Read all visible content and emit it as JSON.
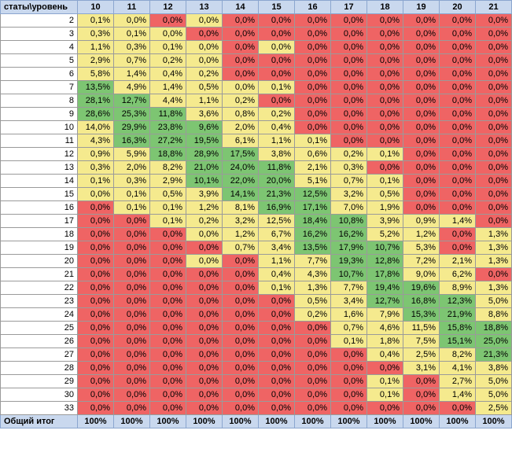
{
  "colors": {
    "red": "#ef6464",
    "yellow": "#f5ea8e",
    "green": "#7dc572",
    "header": "#c9d8ee"
  },
  "corner_label": "статы\\уровень",
  "columns": [
    "10",
    "11",
    "12",
    "13",
    "14",
    "15",
    "16",
    "17",
    "18",
    "19",
    "20",
    "21"
  ],
  "total_label": "Общий итог",
  "totals": [
    "100%",
    "100%",
    "100%",
    "100%",
    "100%",
    "100%",
    "100%",
    "100%",
    "100%",
    "100%",
    "100%",
    "100%"
  ],
  "rows": [
    {
      "label": "2",
      "values": [
        "0,1%",
        "0,0%",
        "0,0%",
        "0,0%",
        "0,0%",
        "0,0%",
        "0,0%",
        "0,0%",
        "0,0%",
        "0,0%",
        "0,0%",
        "0,0%"
      ],
      "colors": [
        "y",
        "y",
        "r",
        "y",
        "r",
        "r",
        "r",
        "r",
        "r",
        "r",
        "r",
        "r"
      ]
    },
    {
      "label": "3",
      "values": [
        "0,3%",
        "0,1%",
        "0,0%",
        "0,0%",
        "0,0%",
        "0,0%",
        "0,0%",
        "0,0%",
        "0,0%",
        "0,0%",
        "0,0%",
        "0,0%"
      ],
      "colors": [
        "y",
        "y",
        "y",
        "r",
        "r",
        "r",
        "r",
        "r",
        "r",
        "r",
        "r",
        "r"
      ]
    },
    {
      "label": "4",
      "values": [
        "1,1%",
        "0,3%",
        "0,1%",
        "0,0%",
        "0,0%",
        "0,0%",
        "0,0%",
        "0,0%",
        "0,0%",
        "0,0%",
        "0,0%",
        "0,0%"
      ],
      "colors": [
        "y",
        "y",
        "y",
        "y",
        "r",
        "y",
        "r",
        "r",
        "r",
        "r",
        "r",
        "r"
      ]
    },
    {
      "label": "5",
      "values": [
        "2,9%",
        "0,7%",
        "0,2%",
        "0,0%",
        "0,0%",
        "0,0%",
        "0,0%",
        "0,0%",
        "0,0%",
        "0,0%",
        "0,0%",
        "0,0%"
      ],
      "colors": [
        "y",
        "y",
        "y",
        "y",
        "r",
        "r",
        "r",
        "r",
        "r",
        "r",
        "r",
        "r"
      ]
    },
    {
      "label": "6",
      "values": [
        "5,8%",
        "1,4%",
        "0,4%",
        "0,2%",
        "0,0%",
        "0,0%",
        "0,0%",
        "0,0%",
        "0,0%",
        "0,0%",
        "0,0%",
        "0,0%"
      ],
      "colors": [
        "y",
        "y",
        "y",
        "y",
        "r",
        "r",
        "r",
        "r",
        "r",
        "r",
        "r",
        "r"
      ]
    },
    {
      "label": "7",
      "values": [
        "13,5%",
        "4,9%",
        "1,4%",
        "0,5%",
        "0,0%",
        "0,1%",
        "0,0%",
        "0,0%",
        "0,0%",
        "0,0%",
        "0,0%",
        "0,0%"
      ],
      "colors": [
        "g",
        "y",
        "y",
        "y",
        "y",
        "y",
        "r",
        "r",
        "r",
        "r",
        "r",
        "r"
      ]
    },
    {
      "label": "8",
      "values": [
        "28,1%",
        "12,7%",
        "4,4%",
        "1,1%",
        "0,2%",
        "0,0%",
        "0,0%",
        "0,0%",
        "0,0%",
        "0,0%",
        "0,0%",
        "0,0%"
      ],
      "colors": [
        "g",
        "g",
        "y",
        "y",
        "y",
        "r",
        "r",
        "r",
        "r",
        "r",
        "r",
        "r"
      ]
    },
    {
      "label": "9",
      "values": [
        "28,6%",
        "25,3%",
        "11,8%",
        "3,6%",
        "0,8%",
        "0,2%",
        "0,0%",
        "0,0%",
        "0,0%",
        "0,0%",
        "0,0%",
        "0,0%"
      ],
      "colors": [
        "g",
        "g",
        "g",
        "y",
        "y",
        "y",
        "r",
        "r",
        "r",
        "r",
        "r",
        "r"
      ]
    },
    {
      "label": "10",
      "values": [
        "14,0%",
        "29,9%",
        "23,8%",
        "9,6%",
        "2,0%",
        "0,4%",
        "0,0%",
        "0,0%",
        "0,0%",
        "0,0%",
        "0,0%",
        "0,0%"
      ],
      "colors": [
        "y",
        "g",
        "g",
        "g",
        "y",
        "y",
        "r",
        "r",
        "r",
        "r",
        "r",
        "r"
      ]
    },
    {
      "label": "11",
      "values": [
        "4,3%",
        "16,3%",
        "27,2%",
        "19,5%",
        "6,1%",
        "1,1%",
        "0,1%",
        "0,0%",
        "0,0%",
        "0,0%",
        "0,0%",
        "0,0%"
      ],
      "colors": [
        "y",
        "g",
        "g",
        "g",
        "y",
        "y",
        "y",
        "r",
        "r",
        "r",
        "r",
        "r"
      ]
    },
    {
      "label": "12",
      "values": [
        "0,9%",
        "5,9%",
        "18,8%",
        "28,9%",
        "17,5%",
        "3,8%",
        "0,6%",
        "0,2%",
        "0,1%",
        "0,0%",
        "0,0%",
        "0,0%"
      ],
      "colors": [
        "y",
        "y",
        "g",
        "g",
        "g",
        "y",
        "y",
        "y",
        "y",
        "r",
        "r",
        "r"
      ]
    },
    {
      "label": "13",
      "values": [
        "0,3%",
        "2,0%",
        "8,2%",
        "21,0%",
        "24,0%",
        "11,8%",
        "2,1%",
        "0,3%",
        "0,0%",
        "0,0%",
        "0,0%",
        "0,0%"
      ],
      "colors": [
        "y",
        "y",
        "y",
        "g",
        "g",
        "g",
        "y",
        "y",
        "r",
        "r",
        "r",
        "r"
      ]
    },
    {
      "label": "14",
      "values": [
        "0,1%",
        "0,3%",
        "2,9%",
        "10,1%",
        "22,0%",
        "20,0%",
        "5,1%",
        "0,7%",
        "0,1%",
        "0,0%",
        "0,0%",
        "0,0%"
      ],
      "colors": [
        "y",
        "y",
        "y",
        "g",
        "g",
        "g",
        "y",
        "y",
        "y",
        "r",
        "r",
        "r"
      ]
    },
    {
      "label": "15",
      "values": [
        "0,0%",
        "0,1%",
        "0,5%",
        "3,9%",
        "14,1%",
        "21,3%",
        "12,5%",
        "3,2%",
        "0,5%",
        "0,0%",
        "0,0%",
        "0,0%"
      ],
      "colors": [
        "y",
        "y",
        "y",
        "y",
        "g",
        "g",
        "g",
        "y",
        "y",
        "r",
        "r",
        "r"
      ]
    },
    {
      "label": "16",
      "values": [
        "0,0%",
        "0,1%",
        "0,1%",
        "1,2%",
        "8,1%",
        "16,9%",
        "17,1%",
        "7,0%",
        "1,9%",
        "0,0%",
        "0,0%",
        "0,0%"
      ],
      "colors": [
        "r",
        "y",
        "y",
        "y",
        "y",
        "g",
        "g",
        "y",
        "y",
        "r",
        "r",
        "r"
      ]
    },
    {
      "label": "17",
      "values": [
        "0,0%",
        "0,0%",
        "0,1%",
        "0,2%",
        "3,2%",
        "12,5%",
        "18,4%",
        "10,8%",
        "3,9%",
        "0,9%",
        "1,4%",
        "0,0%"
      ],
      "colors": [
        "r",
        "r",
        "y",
        "y",
        "y",
        "y",
        "g",
        "g",
        "y",
        "y",
        "y",
        "r"
      ]
    },
    {
      "label": "18",
      "values": [
        "0,0%",
        "0,0%",
        "0,0%",
        "0,0%",
        "1,2%",
        "6,7%",
        "16,2%",
        "16,2%",
        "5,2%",
        "1,2%",
        "0,0%",
        "1,3%"
      ],
      "colors": [
        "r",
        "r",
        "r",
        "y",
        "y",
        "y",
        "g",
        "g",
        "y",
        "y",
        "r",
        "y"
      ]
    },
    {
      "label": "19",
      "values": [
        "0,0%",
        "0,0%",
        "0,0%",
        "0,0%",
        "0,7%",
        "3,4%",
        "13,5%",
        "17,9%",
        "10,7%",
        "5,3%",
        "0,0%",
        "1,3%"
      ],
      "colors": [
        "r",
        "r",
        "r",
        "r",
        "y",
        "y",
        "g",
        "g",
        "g",
        "y",
        "r",
        "y"
      ]
    },
    {
      "label": "20",
      "values": [
        "0,0%",
        "0,0%",
        "0,0%",
        "0,0%",
        "0,0%",
        "1,1%",
        "7,7%",
        "19,3%",
        "12,8%",
        "7,2%",
        "2,1%",
        "1,3%"
      ],
      "colors": [
        "r",
        "r",
        "r",
        "y",
        "r",
        "y",
        "y",
        "g",
        "g",
        "y",
        "y",
        "y"
      ]
    },
    {
      "label": "21",
      "values": [
        "0,0%",
        "0,0%",
        "0,0%",
        "0,0%",
        "0,0%",
        "0,4%",
        "4,3%",
        "10,7%",
        "17,8%",
        "9,0%",
        "6,2%",
        "0,0%"
      ],
      "colors": [
        "r",
        "r",
        "r",
        "r",
        "r",
        "y",
        "y",
        "g",
        "g",
        "y",
        "y",
        "r"
      ]
    },
    {
      "label": "22",
      "values": [
        "0,0%",
        "0,0%",
        "0,0%",
        "0,0%",
        "0,0%",
        "0,1%",
        "1,3%",
        "7,7%",
        "19,4%",
        "19,6%",
        "8,9%",
        "1,3%"
      ],
      "colors": [
        "r",
        "r",
        "r",
        "r",
        "r",
        "y",
        "y",
        "y",
        "g",
        "g",
        "y",
        "y"
      ]
    },
    {
      "label": "23",
      "values": [
        "0,0%",
        "0,0%",
        "0,0%",
        "0,0%",
        "0,0%",
        "0,0%",
        "0,5%",
        "3,4%",
        "12,7%",
        "16,8%",
        "12,3%",
        "5,0%"
      ],
      "colors": [
        "r",
        "r",
        "r",
        "r",
        "r",
        "r",
        "y",
        "y",
        "g",
        "g",
        "g",
        "y"
      ]
    },
    {
      "label": "24",
      "values": [
        "0,0%",
        "0,0%",
        "0,0%",
        "0,0%",
        "0,0%",
        "0,0%",
        "0,2%",
        "1,6%",
        "7,9%",
        "15,3%",
        "21,9%",
        "8,8%"
      ],
      "colors": [
        "r",
        "r",
        "r",
        "r",
        "r",
        "r",
        "y",
        "y",
        "y",
        "g",
        "g",
        "y"
      ]
    },
    {
      "label": "25",
      "values": [
        "0,0%",
        "0,0%",
        "0,0%",
        "0,0%",
        "0,0%",
        "0,0%",
        "0,0%",
        "0,7%",
        "4,6%",
        "11,5%",
        "15,8%",
        "18,8%"
      ],
      "colors": [
        "r",
        "r",
        "r",
        "r",
        "r",
        "r",
        "r",
        "y",
        "y",
        "y",
        "g",
        "g"
      ]
    },
    {
      "label": "26",
      "values": [
        "0,0%",
        "0,0%",
        "0,0%",
        "0,0%",
        "0,0%",
        "0,0%",
        "0,0%",
        "0,1%",
        "1,8%",
        "7,5%",
        "15,1%",
        "25,0%"
      ],
      "colors": [
        "r",
        "r",
        "r",
        "r",
        "r",
        "r",
        "r",
        "y",
        "y",
        "y",
        "g",
        "g"
      ]
    },
    {
      "label": "27",
      "values": [
        "0,0%",
        "0,0%",
        "0,0%",
        "0,0%",
        "0,0%",
        "0,0%",
        "0,0%",
        "0,0%",
        "0,4%",
        "2,5%",
        "8,2%",
        "21,3%"
      ],
      "colors": [
        "r",
        "r",
        "r",
        "r",
        "r",
        "r",
        "r",
        "r",
        "y",
        "y",
        "y",
        "g"
      ]
    },
    {
      "label": "28",
      "values": [
        "0,0%",
        "0,0%",
        "0,0%",
        "0,0%",
        "0,0%",
        "0,0%",
        "0,0%",
        "0,0%",
        "0,0%",
        "3,1%",
        "4,1%",
        "3,8%"
      ],
      "colors": [
        "r",
        "r",
        "r",
        "r",
        "r",
        "r",
        "r",
        "r",
        "r",
        "y",
        "y",
        "y"
      ]
    },
    {
      "label": "29",
      "values": [
        "0,0%",
        "0,0%",
        "0,0%",
        "0,0%",
        "0,0%",
        "0,0%",
        "0,0%",
        "0,0%",
        "0,1%",
        "0,0%",
        "2,7%",
        "5,0%"
      ],
      "colors": [
        "r",
        "r",
        "r",
        "r",
        "r",
        "r",
        "r",
        "r",
        "y",
        "r",
        "y",
        "y"
      ]
    },
    {
      "label": "30",
      "values": [
        "0,0%",
        "0,0%",
        "0,0%",
        "0,0%",
        "0,0%",
        "0,0%",
        "0,0%",
        "0,0%",
        "0,1%",
        "0,0%",
        "1,4%",
        "5,0%"
      ],
      "colors": [
        "r",
        "r",
        "r",
        "r",
        "r",
        "r",
        "r",
        "r",
        "y",
        "r",
        "y",
        "y"
      ]
    },
    {
      "label": "33",
      "values": [
        "0,0%",
        "0,0%",
        "0,0%",
        "0,0%",
        "0,0%",
        "0,0%",
        "0,0%",
        "0,0%",
        "0,0%",
        "0,0%",
        "0,0%",
        "2,5%"
      ],
      "colors": [
        "r",
        "r",
        "r",
        "r",
        "r",
        "r",
        "r",
        "r",
        "r",
        "r",
        "r",
        "y"
      ]
    }
  ]
}
